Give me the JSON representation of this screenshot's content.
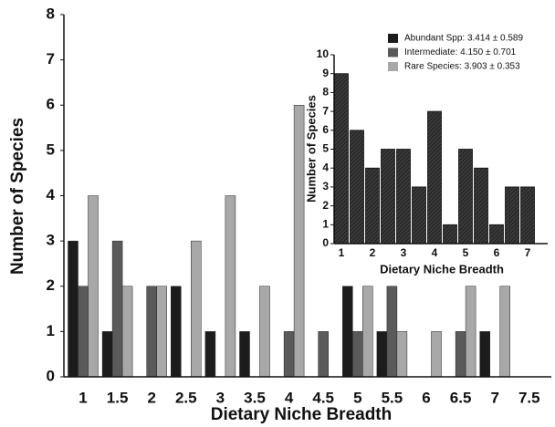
{
  "chart_data": [
    {
      "type": "bar",
      "xlabel": "Dietary Niche Breadth",
      "ylabel": "Number of Species",
      "categories": [
        "1",
        "1.5",
        "2",
        "2.5",
        "3",
        "3.5",
        "4",
        "4.5",
        "5",
        "5.5",
        "6",
        "6.5",
        "7",
        "7.5"
      ],
      "series": [
        {
          "name": "Abundant Spp:  3.414 ± 0.589",
          "color": "#1c1c1c",
          "values": [
            3,
            1,
            0,
            2,
            1,
            1,
            0,
            0,
            2,
            1,
            0,
            0,
            1,
            0
          ]
        },
        {
          "name": "Intermediate:  4.150 ± 0.701",
          "color": "#5a5a5a",
          "values": [
            2,
            3,
            2,
            0,
            0,
            0,
            1,
            1,
            1,
            2,
            0,
            1,
            0,
            0
          ]
        },
        {
          "name": "Rare Species:  3.903 ± 0.353",
          "color": "#a8a8a8",
          "values": [
            4,
            2,
            2,
            3,
            4,
            2,
            6,
            0,
            2,
            1,
            1,
            2,
            2,
            0
          ]
        }
      ],
      "ylim": [
        0,
        8
      ],
      "yticks": [
        0,
        1,
        2,
        3,
        4,
        5,
        6,
        7,
        8
      ],
      "legend": "upper right"
    },
    {
      "type": "bar",
      "xlabel": "Dietary Niche Breadth",
      "ylabel": "Number of Species",
      "categories": [
        "1",
        null,
        "2",
        null,
        "3",
        null,
        "4",
        null,
        "5",
        null,
        "6",
        null,
        "7"
      ],
      "values": [
        9,
        6,
        4,
        5,
        5,
        3,
        7,
        1,
        5,
        4,
        1,
        3,
        3
      ],
      "color": "#3a3a3a",
      "ylim": [
        0,
        10
      ],
      "yticks": [
        0,
        1,
        2,
        3,
        4,
        5,
        6,
        7,
        8,
        9,
        10
      ]
    }
  ]
}
